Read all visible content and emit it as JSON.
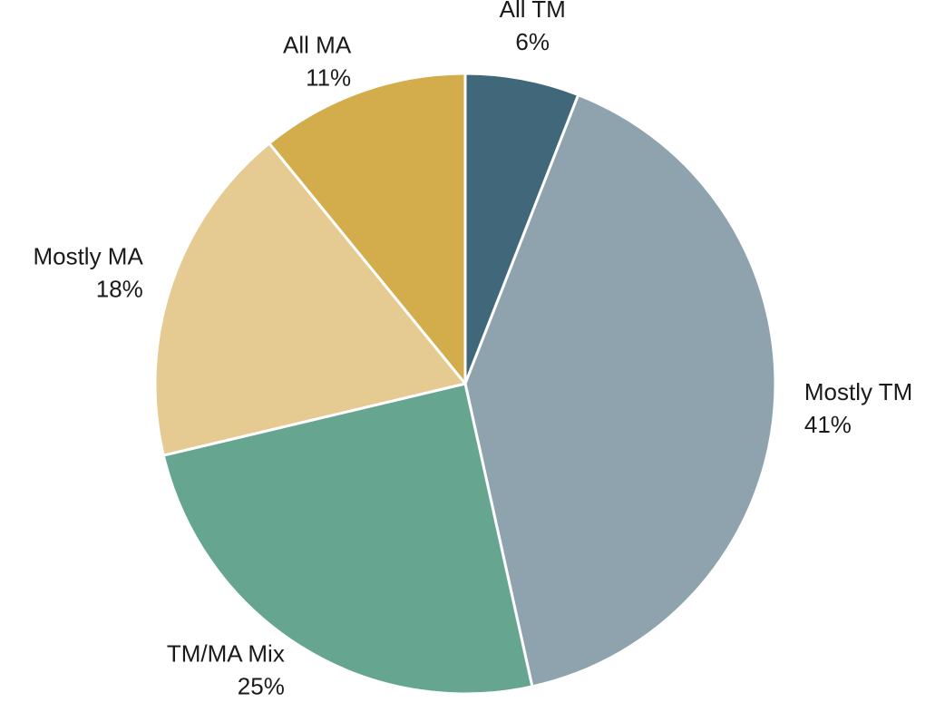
{
  "chart_data": {
    "type": "pie",
    "categories": [
      "All TM",
      "Mostly TM",
      "TM/MA Mix",
      "Mostly MA",
      "All MA"
    ],
    "values": [
      6,
      41,
      25,
      18,
      11
    ],
    "value_labels": [
      "6%",
      "41%",
      "25%",
      "18%",
      "11%"
    ],
    "colors": [
      "#40687a",
      "#8ea3ad",
      "#66a691",
      "#e5cb92",
      "#d3ad4b"
    ]
  }
}
